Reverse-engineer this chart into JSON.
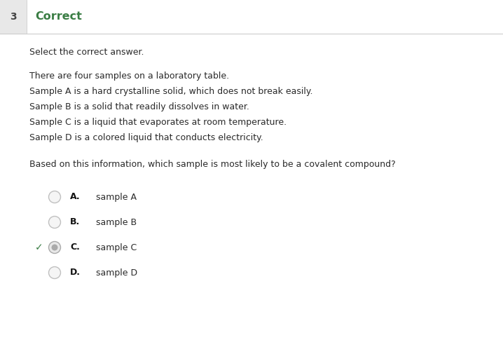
{
  "question_number": "3",
  "header_text": "Correct",
  "header_color": "#3a7d44",
  "header_border_color": "#cccccc",
  "num_box_color": "#e8e8e8",
  "num_box_border": "#cccccc",
  "bg_color": "#ffffff",
  "text_color": "#2a2a2a",
  "instruction": "Select the correct answer.",
  "paragraph": [
    "There are four samples on a laboratory table.",
    "Sample A is a hard crystalline solid, which does not break easily.",
    "Sample B is a solid that readily dissolves in water.",
    "Sample C is a liquid that evaporates at room temperature.",
    "Sample D is a colored liquid that conducts electricity."
  ],
  "question": "Based on this information, which sample is most likely to be a covalent compound?",
  "choices": [
    {
      "label": "A.",
      "text": "sample A"
    },
    {
      "label": "B.",
      "text": "sample B"
    },
    {
      "label": "C.",
      "text": "sample C"
    },
    {
      "label": "D.",
      "text": "sample D"
    }
  ],
  "correct_index": 2,
  "font_size_header": 11.5,
  "font_size_number": 10,
  "font_size_body": 9.0,
  "font_size_choice": 9.0,
  "radio_color_empty": "#c0c0c0",
  "radio_color_selected_outer": "#b0b0b0",
  "radio_color_selected_inner": "#c8c8c8",
  "checkmark_color": "#3a7d44",
  "label_bold_color": "#111111"
}
